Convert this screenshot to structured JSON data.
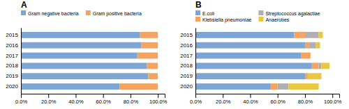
{
  "chart_data": [
    {
      "type": "bar",
      "title": "A",
      "orientation": "horizontal",
      "stacked": true,
      "legend": "top",
      "grid": false,
      "categories": [
        "2015",
        "2016",
        "2017",
        "2018",
        "2019",
        "2020"
      ],
      "series": [
        {
          "name": "Gram negative bacteria",
          "color": "#7EA6D4",
          "values": [
            87,
            88,
            85,
            92,
            93,
            72
          ]
        },
        {
          "name": "Gram positive bacteria",
          "color": "#F4A460",
          "values": [
            13,
            12,
            15,
            8,
            7,
            28
          ]
        }
      ],
      "xlim": [
        0,
        105
      ],
      "xticks": [
        {
          "value": 0,
          "label": "0.0%"
        },
        {
          "value": 20,
          "label": "20.0%"
        },
        {
          "value": 40,
          "label": "40.0%"
        },
        {
          "value": 60,
          "label": "60.0%"
        },
        {
          "value": 80,
          "label": "80.0%"
        },
        {
          "value": 100,
          "label": "100.0%"
        }
      ]
    },
    {
      "type": "bar",
      "title": "B",
      "orientation": "horizontal",
      "stacked": true,
      "legend": "top",
      "grid": false,
      "categories": [
        "2015",
        "2016",
        "2017",
        "2018",
        "2019",
        "2020"
      ],
      "series": [
        {
          "name": "E.coli",
          "color": "#7EA6D4",
          "values": [
            72,
            80,
            77,
            85,
            80,
            55
          ]
        },
        {
          "name": "Klebsiella pneumoniae",
          "color": "#F4A460",
          "values": [
            8,
            3,
            7,
            5,
            2,
            5
          ]
        },
        {
          "name": "Streptococcus agalactiae",
          "color": "#B0B0B0",
          "values": [
            10,
            5,
            0,
            2,
            0,
            8
          ]
        },
        {
          "name": "Anaerobes",
          "color": "#E8C840",
          "values": [
            3,
            3,
            0,
            6,
            10,
            22
          ]
        }
      ],
      "xlim": [
        0,
        105
      ],
      "xticks": [
        {
          "value": 0,
          "label": "0.0%"
        },
        {
          "value": 20,
          "label": "20.0%"
        },
        {
          "value": 40,
          "label": "40.0%"
        },
        {
          "value": 60,
          "label": "60.0%"
        },
        {
          "value": 80,
          "label": "80.0%"
        },
        {
          "value": 100,
          "label": "100.0%"
        }
      ]
    }
  ]
}
